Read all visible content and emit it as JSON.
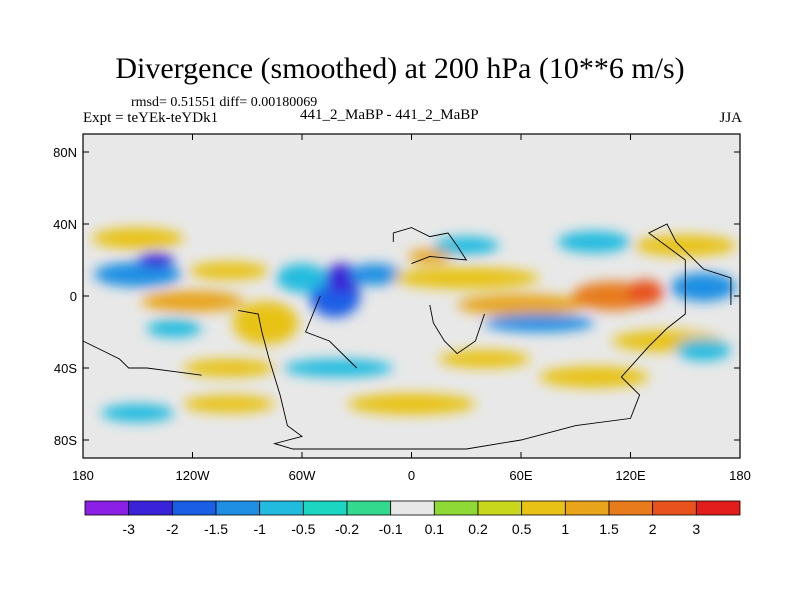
{
  "chart_data": {
    "type": "heatmap",
    "title": "Divergence (smoothed) at 200 hPa (10**6 m/s)",
    "subtitle_stats": "rmsd= 0.51551 diff= 0.00180069",
    "experiment": "Expt = teYEk-teYDk1",
    "cases": "441_2_MaBP - 441_2_MaBP",
    "season": "JJA",
    "x_axis": {
      "range": [
        -180,
        180
      ],
      "ticks": [
        {
          "value": -180,
          "label": "180"
        },
        {
          "value": -120,
          "label": "120W"
        },
        {
          "value": -60,
          "label": "60W"
        },
        {
          "value": 0,
          "label": "0"
        },
        {
          "value": 60,
          "label": "60E"
        },
        {
          "value": 120,
          "label": "120E"
        },
        {
          "value": 180,
          "label": "180"
        }
      ]
    },
    "y_axis": {
      "range": [
        -90,
        90
      ],
      "ticks": [
        {
          "value": 80,
          "label": "80N"
        },
        {
          "value": 40,
          "label": "40N"
        },
        {
          "value": 0,
          "label": "0"
        },
        {
          "value": -40,
          "label": "40S"
        },
        {
          "value": -80,
          "label": "80S"
        }
      ]
    },
    "colorbar": {
      "colors": [
        "#8c1fe6",
        "#3a22d8",
        "#1b5ee6",
        "#1f8fe3",
        "#21bbdf",
        "#1cd6c1",
        "#33d98d",
        "#e8e8e8",
        "#8fd936",
        "#c8d61c",
        "#e8c315",
        "#e8a51c",
        "#e87c1c",
        "#e8521c",
        "#e31c1c"
      ],
      "labels": [
        "-3",
        "-2",
        "-1.5",
        "-1",
        "-0.5",
        "-0.2",
        "-0.1",
        "0.1",
        "0.2",
        "0.5",
        "1",
        "1.5",
        "2",
        "3"
      ]
    },
    "field_blobs": [
      {
        "lon": -150,
        "lat": 12,
        "rx": 24,
        "ry": 7,
        "value": -1.2
      },
      {
        "lon": -140,
        "lat": 20,
        "rx": 10,
        "ry": 4,
        "value": -2.2
      },
      {
        "lon": -120,
        "lat": -3,
        "rx": 28,
        "ry": 6,
        "value": 1.3
      },
      {
        "lon": -100,
        "lat": 14,
        "rx": 22,
        "ry": 5,
        "value": 0.6
      },
      {
        "lon": -150,
        "lat": 32,
        "rx": 25,
        "ry": 6,
        "value": 0.5
      },
      {
        "lon": -130,
        "lat": -18,
        "rx": 15,
        "ry": 5,
        "value": -0.6
      },
      {
        "lon": -80,
        "lat": -15,
        "rx": 18,
        "ry": 12,
        "value": 0.6
      },
      {
        "lon": -42,
        "lat": 0,
        "rx": 14,
        "ry": 12,
        "value": -1.8
      },
      {
        "lon": -38,
        "lat": 10,
        "rx": 10,
        "ry": 8,
        "value": -2.6
      },
      {
        "lon": -20,
        "lat": 12,
        "rx": 14,
        "ry": 6,
        "value": -1.2
      },
      {
        "lon": -60,
        "lat": 10,
        "rx": 14,
        "ry": 8,
        "value": -0.6
      },
      {
        "lon": 10,
        "lat": 22,
        "rx": 12,
        "ry": 4,
        "value": 1.2
      },
      {
        "lon": 30,
        "lat": 10,
        "rx": 40,
        "ry": 6,
        "value": 0.6
      },
      {
        "lon": 30,
        "lat": 28,
        "rx": 18,
        "ry": 5,
        "value": -0.6
      },
      {
        "lon": 60,
        "lat": -5,
        "rx": 35,
        "ry": 6,
        "value": 1.2
      },
      {
        "lon": 70,
        "lat": -15,
        "rx": 30,
        "ry": 5,
        "value": -1.2
      },
      {
        "lon": 110,
        "lat": 0,
        "rx": 22,
        "ry": 8,
        "value": 1.5
      },
      {
        "lon": 128,
        "lat": 2,
        "rx": 10,
        "ry": 7,
        "value": 2.5
      },
      {
        "lon": 160,
        "lat": 5,
        "rx": 18,
        "ry": 8,
        "value": -1.3
      },
      {
        "lon": 150,
        "lat": 28,
        "rx": 28,
        "ry": 6,
        "value": 0.6
      },
      {
        "lon": 140,
        "lat": -25,
        "rx": 30,
        "ry": 6,
        "value": 0.6
      },
      {
        "lon": 100,
        "lat": 30,
        "rx": 20,
        "ry": 6,
        "value": -0.6
      },
      {
        "lon": 40,
        "lat": -35,
        "rx": 25,
        "ry": 5,
        "value": 0.6
      },
      {
        "lon": -40,
        "lat": -40,
        "rx": 30,
        "ry": 5,
        "value": -0.6
      },
      {
        "lon": -100,
        "lat": -40,
        "rx": 25,
        "ry": 5,
        "value": 0.6
      },
      {
        "lon": 100,
        "lat": -45,
        "rx": 30,
        "ry": 6,
        "value": 0.6
      },
      {
        "lon": 0,
        "lat": -60,
        "rx": 35,
        "ry": 6,
        "value": 0.6
      },
      {
        "lon": -100,
        "lat": -60,
        "rx": 25,
        "ry": 5,
        "value": 0.6
      },
      {
        "lon": -150,
        "lat": -65,
        "rx": 20,
        "ry": 5,
        "value": -0.6
      },
      {
        "lon": 160,
        "lat": -30,
        "rx": 15,
        "ry": 6,
        "value": -0.6
      }
    ],
    "coastlines": [
      [
        [
          -95,
          -8
        ],
        [
          -84,
          -10
        ],
        [
          -82,
          -20
        ],
        [
          -78,
          -35
        ],
        [
          -72,
          -55
        ],
        [
          -68,
          -72
        ],
        [
          -60,
          -78
        ],
        [
          -75,
          -82
        ],
        [
          -65,
          -85
        ],
        [
          -20,
          -85
        ],
        [
          30,
          -85
        ],
        [
          60,
          -80
        ],
        [
          90,
          -72
        ],
        [
          120,
          -68
        ],
        [
          125,
          -55
        ],
        [
          115,
          -45
        ],
        [
          130,
          -28
        ],
        [
          140,
          -18
        ],
        [
          150,
          -10
        ],
        [
          150,
          20
        ],
        [
          130,
          35
        ],
        [
          140,
          40
        ],
        [
          145,
          30
        ],
        [
          160,
          15
        ],
        [
          175,
          10
        ],
        [
          175,
          -5
        ]
      ],
      [
        [
          -50,
          0
        ],
        [
          -58,
          -20
        ],
        [
          -45,
          -25
        ],
        [
          -35,
          -35
        ],
        [
          -30,
          -40
        ]
      ],
      [
        [
          -10,
          30
        ],
        [
          -10,
          35
        ],
        [
          0,
          38
        ],
        [
          10,
          33
        ],
        [
          20,
          35
        ],
        [
          25,
          28
        ],
        [
          30,
          20
        ],
        [
          10,
          22
        ],
        [
          0,
          18
        ]
      ],
      [
        [
          10,
          -5
        ],
        [
          12,
          -15
        ],
        [
          18,
          -25
        ],
        [
          25,
          -32
        ],
        [
          35,
          -25
        ],
        [
          40,
          -10
        ]
      ],
      [
        [
          -180,
          -25
        ],
        [
          -170,
          -30
        ],
        [
          -160,
          -35
        ],
        [
          -155,
          -40
        ],
        [
          -145,
          -40
        ],
        [
          -130,
          -42
        ],
        [
          -115,
          -44
        ]
      ]
    ]
  }
}
